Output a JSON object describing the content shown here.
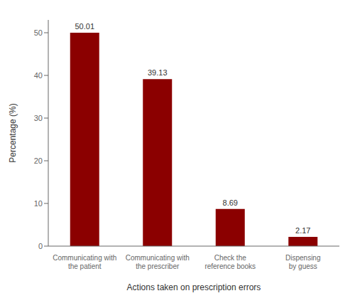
{
  "chart_data": {
    "type": "bar",
    "categories": [
      "Communicating with\nthe patient",
      "Communicating with\nthe prescriber",
      "Check the\nreference books",
      "Dispensing\nby guess"
    ],
    "values": [
      50.01,
      39.13,
      8.69,
      2.17
    ],
    "color": "#8B0000",
    "xlabel": "Actions taken on prescription errors",
    "ylabel": "Percentage (%)",
    "ylim": [
      0,
      53
    ],
    "yticks": [
      0,
      10,
      20,
      30,
      40,
      50
    ],
    "data_labels": true,
    "grid": false
  }
}
